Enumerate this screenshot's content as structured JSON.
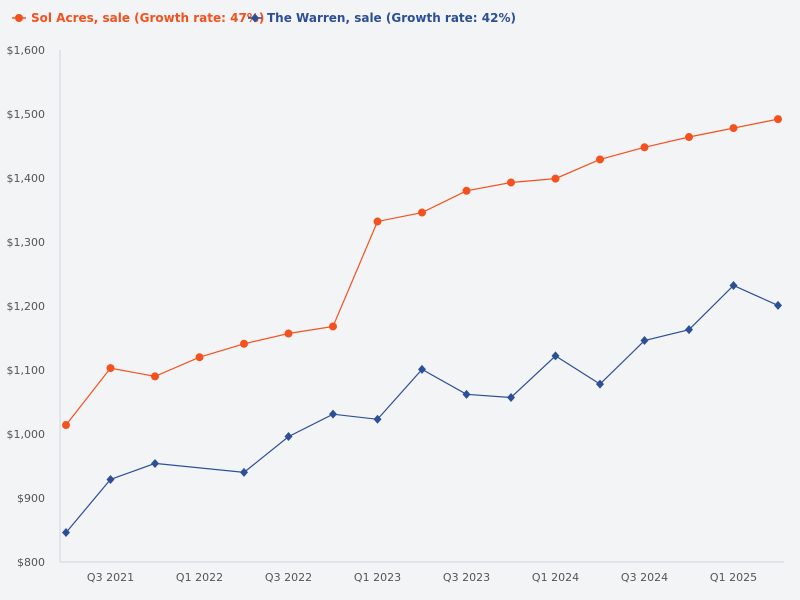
{
  "chart_data": {
    "type": "line",
    "title": "",
    "xlabel": "",
    "ylabel": "",
    "ylim": [
      800,
      1600
    ],
    "yticks": [
      "$800",
      "$900",
      "$1,000",
      "$1,100",
      "$1,200",
      "$1,300",
      "$1,400",
      "$1,500",
      "$1,600"
    ],
    "xticks": [
      "Q3 2021",
      "Q1 2022",
      "Q3 2022",
      "Q1 2023",
      "Q3 2023",
      "Q1 2024",
      "Q3 2024",
      "Q1 2025"
    ],
    "xtick_positions": [
      1,
      3,
      5,
      7,
      9,
      11,
      13,
      15
    ],
    "x_count": 17,
    "legend_position": "top-left",
    "series": [
      {
        "name": "Sol Acres, sale (Growth rate: 47%)",
        "color": "#f4511e",
        "marker": "circle",
        "points": [
          [
            0,
            1014
          ],
          [
            1,
            1103
          ],
          [
            2,
            1090
          ],
          [
            3,
            1120
          ],
          [
            4,
            1141
          ],
          [
            5,
            1157
          ],
          [
            6,
            1168
          ],
          [
            7,
            1332
          ],
          [
            8,
            1346
          ],
          [
            9,
            1380
          ],
          [
            10,
            1393
          ],
          [
            11,
            1399
          ],
          [
            12,
            1429
          ],
          [
            13,
            1448
          ],
          [
            14,
            1464
          ],
          [
            15,
            1478
          ],
          [
            16,
            1492
          ]
        ]
      },
      {
        "name": "The Warren, sale (Growth rate: 42%)",
        "color": "#2c4f96",
        "marker": "diamond",
        "points": [
          [
            0,
            846
          ],
          [
            1,
            929
          ],
          [
            2,
            954
          ],
          [
            4,
            940
          ],
          [
            5,
            996
          ],
          [
            6,
            1031
          ],
          [
            7,
            1023
          ],
          [
            8,
            1101
          ],
          [
            9,
            1062
          ],
          [
            10,
            1057
          ],
          [
            11,
            1122
          ],
          [
            12,
            1078
          ],
          [
            13,
            1146
          ],
          [
            14,
            1163
          ],
          [
            15,
            1232
          ],
          [
            16,
            1201
          ]
        ]
      }
    ]
  }
}
